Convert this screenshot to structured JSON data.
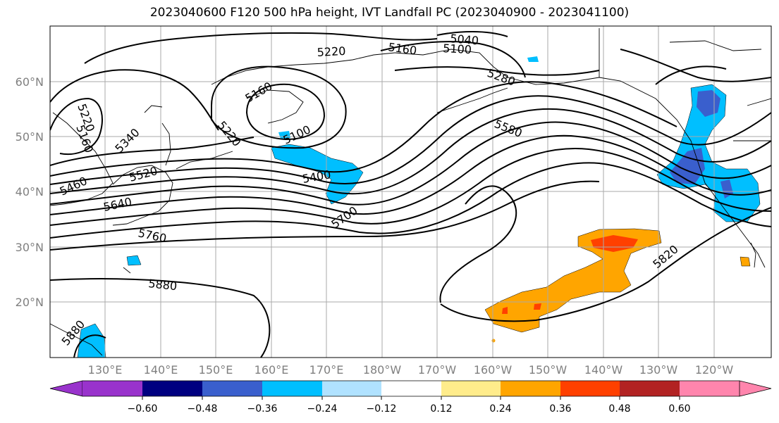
{
  "title": "2023040600 F120 500 hPa height, IVT Landfall PC (2023040900 - 2023041100)",
  "map": {
    "lon_labels": [
      "130°E",
      "140°E",
      "150°E",
      "160°E",
      "170°E",
      "180°W",
      "170°W",
      "160°W",
      "150°W",
      "140°W",
      "130°W",
      "120°W"
    ],
    "lat_labels": [
      "60°N",
      "50°N",
      "40°N",
      "30°N",
      "20°N"
    ],
    "contour_labels": [
      "5040",
      "5100",
      "5160",
      "5220",
      "5160",
      "5220",
      "5160",
      "5220",
      "5100",
      "5280",
      "5340",
      "5400",
      "5460",
      "5520",
      "5580",
      "5640",
      "5700",
      "5760",
      "5820",
      "5880",
      "5880"
    ]
  },
  "colorbar": {
    "tick_labels": [
      "−0.60",
      "−0.48",
      "−0.36",
      "−0.24",
      "−0.12",
      "0.12",
      "0.24",
      "0.36",
      "0.48",
      "0.60"
    ],
    "colors": [
      "#9933cc",
      "#000080",
      "#3a5fcd",
      "#00bfff",
      "#b0e2ff",
      "#ffffff",
      "#ffec8b",
      "#ffa500",
      "#ff4000",
      "#b22222",
      "#ff85ad"
    ]
  }
}
